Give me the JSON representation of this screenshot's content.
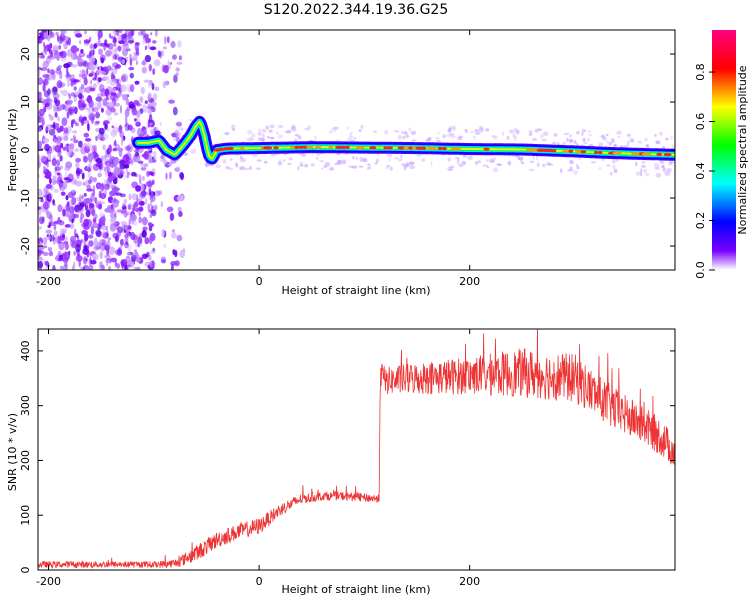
{
  "title": "S120.2022.344.19.36.G25",
  "chart_data": [
    {
      "type": "heatmap",
      "xlabel": "Height of straight line (km)",
      "ylabel": "Frequency (Hz)",
      "xlim": [
        -210,
        395
      ],
      "ylim": [
        -25,
        25
      ],
      "x_ticks": [
        -200,
        0,
        200
      ],
      "y_ticks": [
        -20,
        -10,
        0,
        10,
        20
      ],
      "colorbar": {
        "label": "Normalized spectral amplitude",
        "range": [
          0,
          0.97
        ],
        "ticks": [
          "0.0",
          "0.2",
          "0.4",
          "0.6",
          "0.8"
        ],
        "tick_values": [
          0.0,
          0.2,
          0.4,
          0.6,
          0.8
        ],
        "colors": [
          "#ffffff",
          "#7a00ff",
          "#0000ff",
          "#00ffff",
          "#00ff00",
          "#ffff00",
          "#ff0000",
          "#ff0080"
        ]
      },
      "trace": {
        "x": [
          -115,
          -105,
          -95,
          -88,
          -80,
          -72,
          -65,
          -60,
          -56,
          -52,
          -48,
          -45,
          -40,
          -30,
          0,
          50,
          100,
          150,
          200,
          250,
          300,
          330,
          360,
          395
        ],
        "y": [
          1.5,
          1.5,
          2,
          0,
          -1,
          1,
          3,
          5,
          6,
          3,
          -1,
          -2,
          0,
          0.3,
          0.4,
          0.6,
          0.5,
          0.4,
          0.2,
          0.1,
          -0.3,
          -0.6,
          -0.8,
          -1.0
        ]
      },
      "noise_region_x": [
        -210,
        -100
      ]
    },
    {
      "type": "line",
      "xlabel": "Height of straight line (km)",
      "ylabel": "SNR (10 * v/v)",
      "xlim": [
        -210,
        395
      ],
      "ylim": [
        0,
        440
      ],
      "x_ticks": [
        -200,
        0,
        200
      ],
      "y_ticks": [
        0,
        100,
        200,
        300,
        400
      ],
      "series": [
        {
          "color": "#ee3333",
          "x": [
            -210,
            -150,
            -100,
            -80,
            -60,
            -40,
            -20,
            0,
            20,
            40,
            60,
            80,
            100,
            114,
            115,
            120,
            150,
            200,
            250,
            300,
            320,
            340,
            360,
            380,
            395
          ],
          "y": [
            10,
            10,
            10,
            12,
            30,
            55,
            70,
            80,
            110,
            130,
            135,
            135,
            132,
            130,
            360,
            345,
            350,
            355,
            360,
            350,
            320,
            290,
            270,
            245,
            215
          ],
          "noise": [
            6,
            6,
            6,
            8,
            15,
            15,
            15,
            15,
            12,
            10,
            8,
            8,
            8,
            8,
            25,
            25,
            30,
            35,
            45,
            45,
            40,
            40,
            35,
            35,
            30
          ]
        }
      ]
    }
  ]
}
